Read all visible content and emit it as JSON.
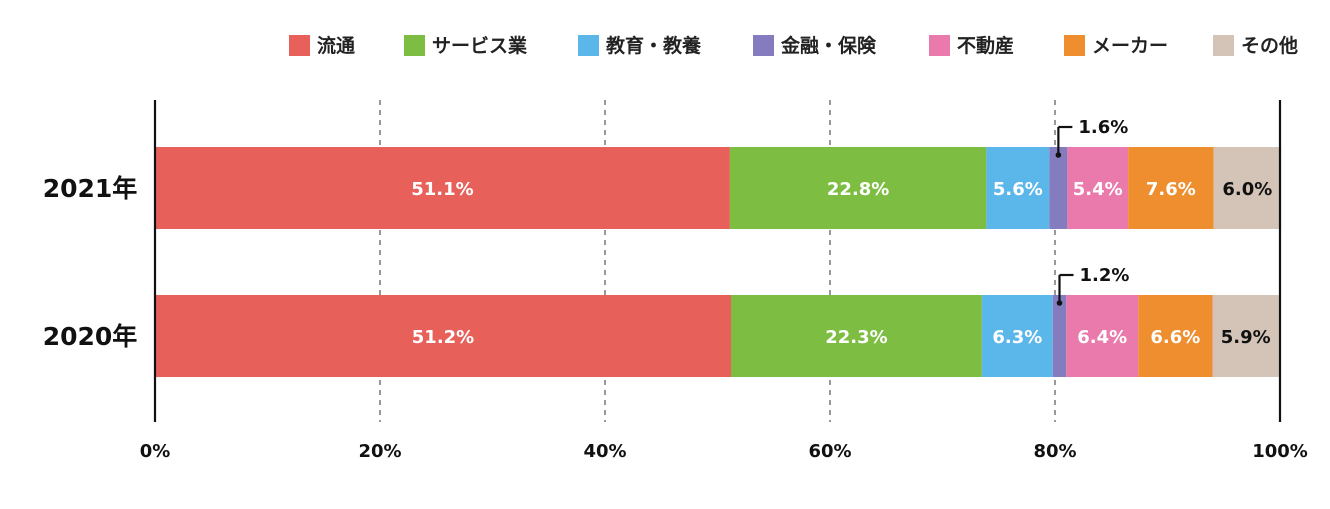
{
  "chart_data": {
    "type": "bar",
    "orientation": "horizontal",
    "stacked": true,
    "percent": true,
    "categories": [
      "2021年",
      "2020年"
    ],
    "series": [
      {
        "name": "流通",
        "color": "#e8605a",
        "values": [
          51.1,
          51.2
        ],
        "labels": [
          "51.1%",
          "51.2%"
        ],
        "label_color": "#ffffff"
      },
      {
        "name": "サービス業",
        "color": "#7dbd42",
        "values": [
          22.8,
          22.3
        ],
        "labels": [
          "22.8%",
          "22.3%"
        ],
        "label_color": "#ffffff"
      },
      {
        "name": "教育・教養",
        "color": "#5bb6ea",
        "values": [
          5.6,
          6.3
        ],
        "labels": [
          "5.6%",
          "6.3%"
        ],
        "label_color": "#ffffff"
      },
      {
        "name": "金融・保険",
        "color": "#857cc0",
        "values": [
          1.6,
          1.2
        ],
        "labels": [
          "1.6%",
          "1.2%"
        ],
        "label_color": "#111111",
        "callout": true
      },
      {
        "name": "不動産",
        "color": "#ea7aab",
        "values": [
          5.4,
          6.4
        ],
        "labels": [
          "5.4%",
          "6.4%"
        ],
        "label_color": "#ffffff"
      },
      {
        "name": "メーカー",
        "color": "#ef8e2f",
        "values": [
          7.6,
          6.6
        ],
        "labels": [
          "7.6%",
          "6.6%"
        ],
        "label_color": "#ffffff"
      },
      {
        "name": "その他",
        "color": "#d4c4b7",
        "values": [
          6.0,
          5.9
        ],
        "labels": [
          "6.0%",
          "5.9%"
        ],
        "label_color": "#111111"
      }
    ],
    "xlim": [
      0,
      100
    ],
    "xticks": [
      0,
      20,
      40,
      60,
      80,
      100
    ],
    "xtick_labels": [
      "0%",
      "20%",
      "40%",
      "60%",
      "80%",
      "100%"
    ],
    "grid": "dashed-vertical",
    "legend_position": "top-right"
  }
}
